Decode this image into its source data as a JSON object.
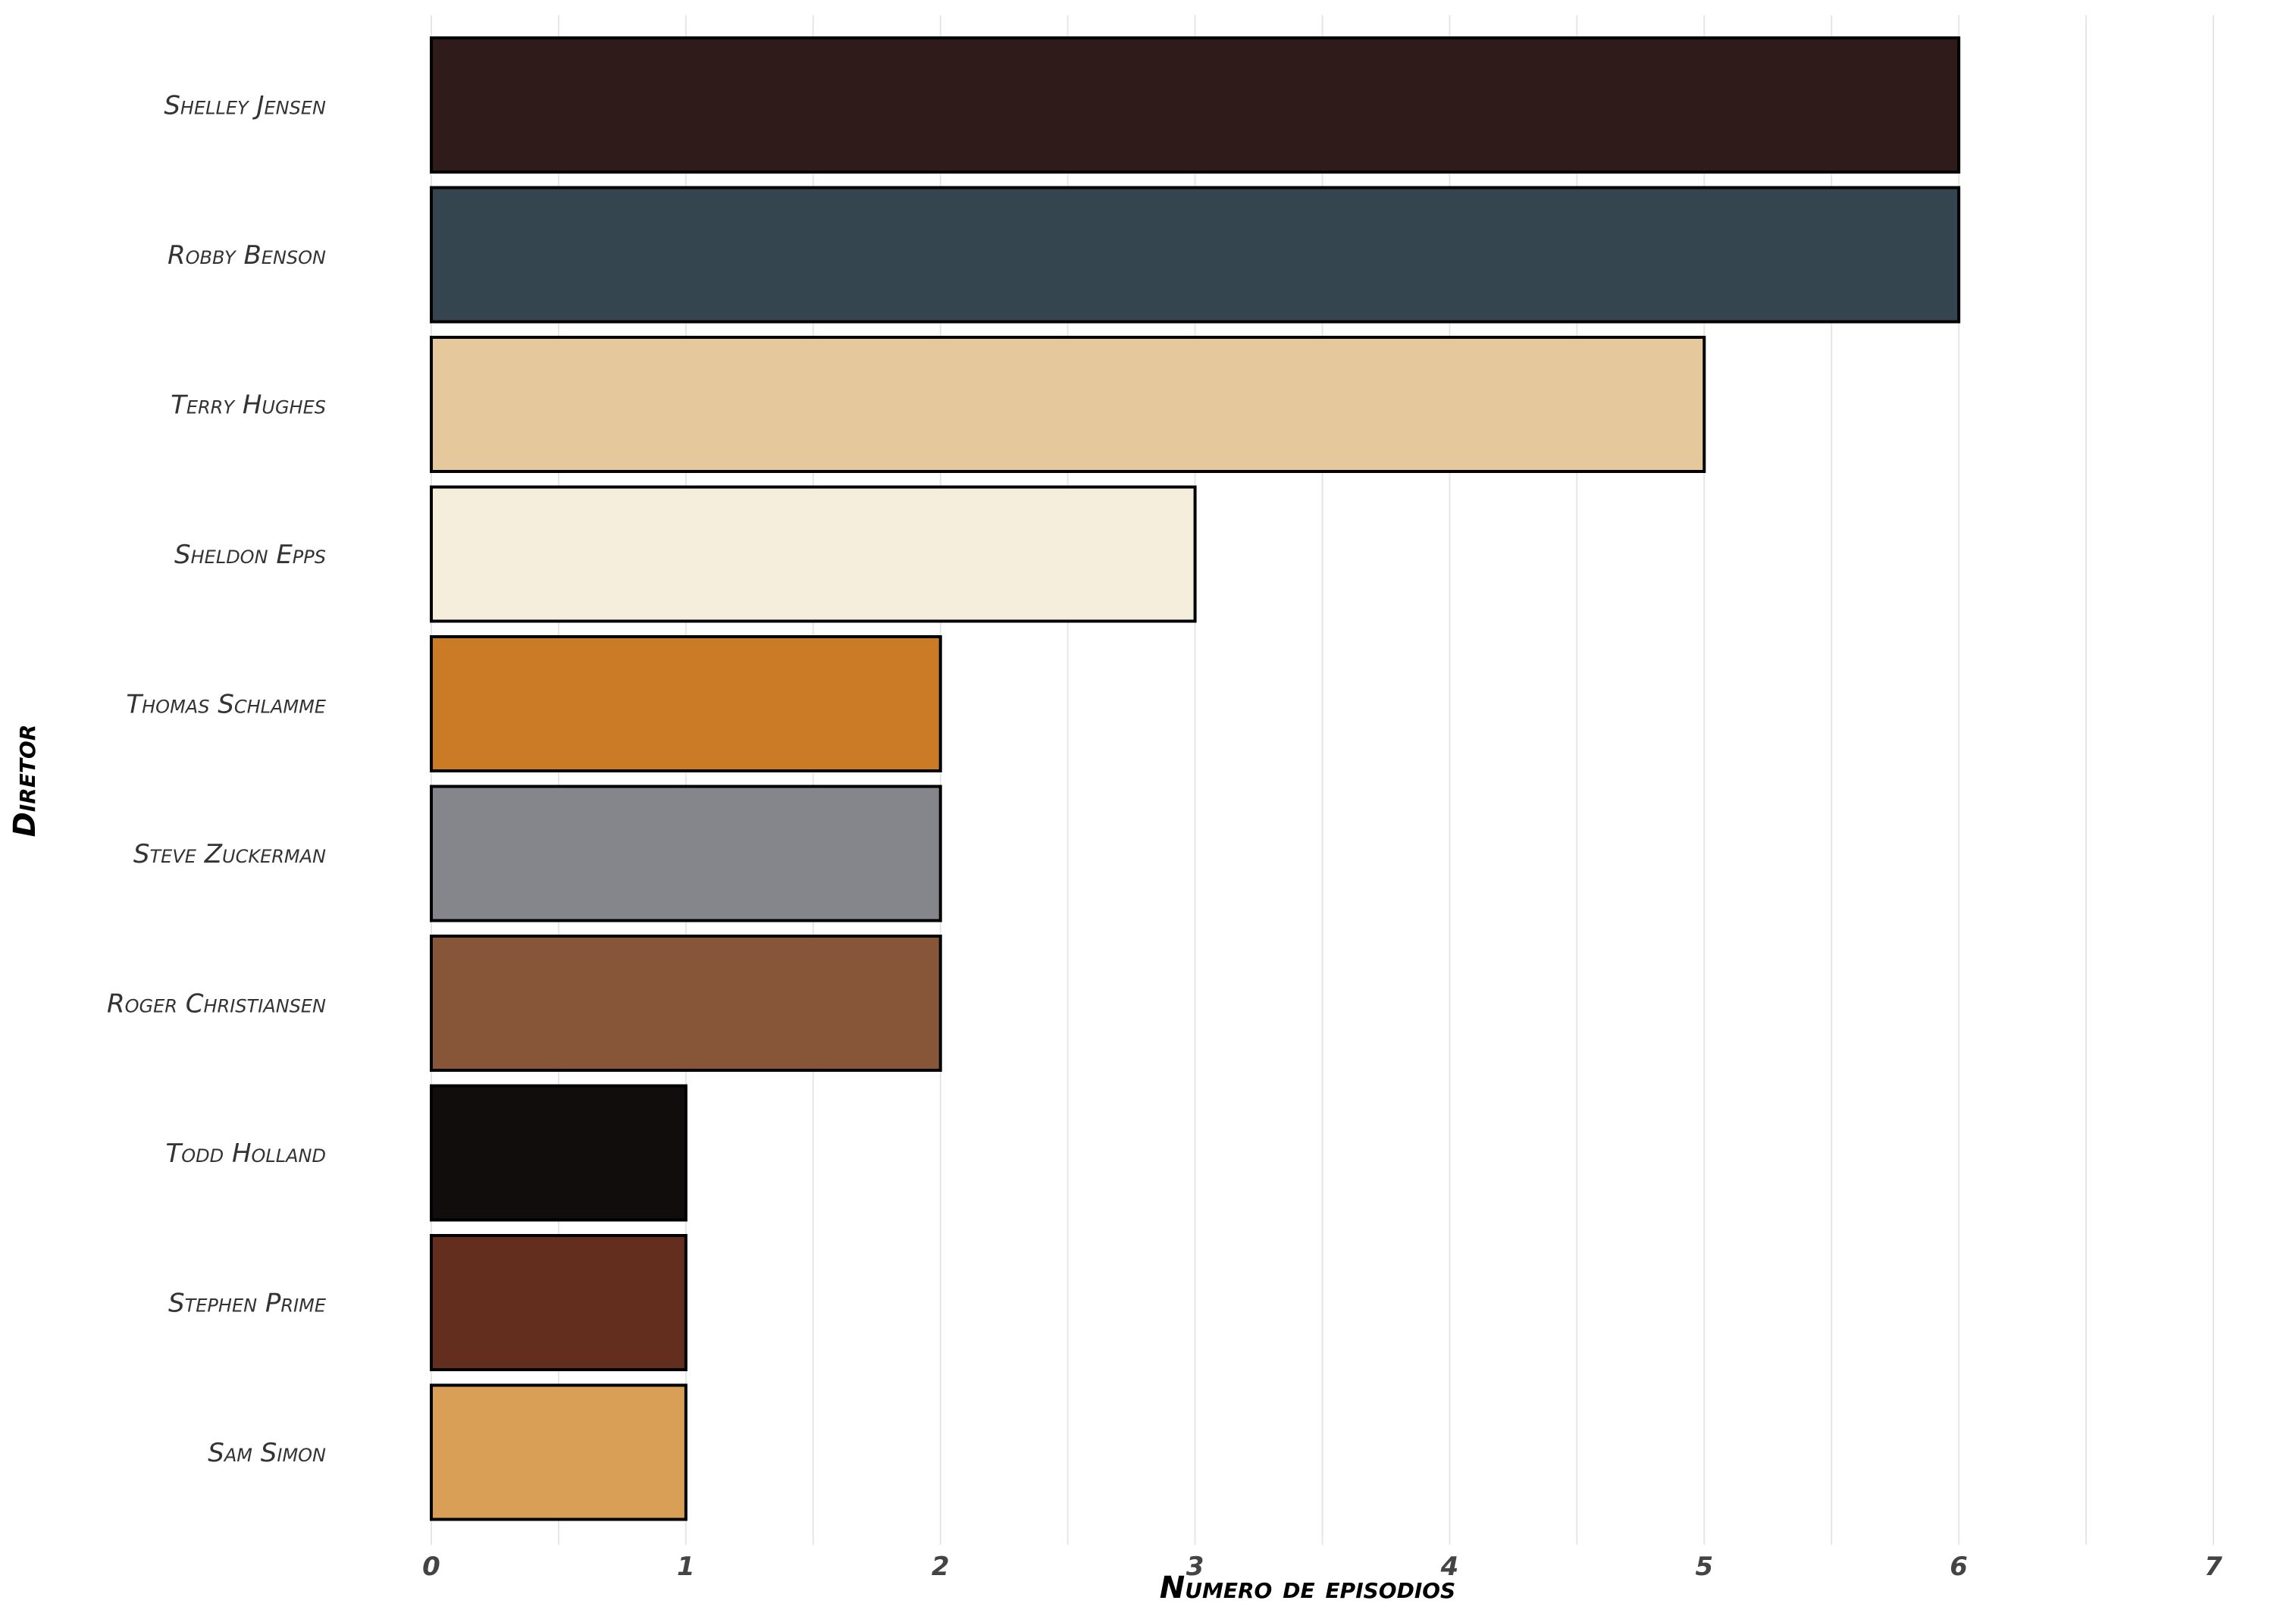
{
  "chart_data": {
    "type": "bar",
    "orientation": "horizontal",
    "title": "",
    "xlabel": "Numero de episodios",
    "ylabel": "Diretor",
    "xlim": [
      0,
      7
    ],
    "x_ticks": [
      0,
      1,
      2,
      3,
      4,
      5,
      6,
      7
    ],
    "grid": true,
    "legend": "none",
    "categories": [
      "Shelley Jensen",
      "Robby Benson",
      "Terry Hughes",
      "Sheldon Epps",
      "Thomas Schlamme",
      "Steve Zuckerman",
      "Roger Christiansen",
      "Todd Holland",
      "Stephen Prime",
      "Sam Simon"
    ],
    "values": [
      6,
      6,
      5,
      3,
      2,
      2,
      2,
      1,
      1,
      1
    ],
    "colors": [
      "#2f1b1a",
      "#344550",
      "#e5c99d",
      "#f5eedd",
      "#cb7a25",
      "#85858c",
      "#875537",
      "#110d0c",
      "#642e1e",
      "#d99f57"
    ]
  }
}
